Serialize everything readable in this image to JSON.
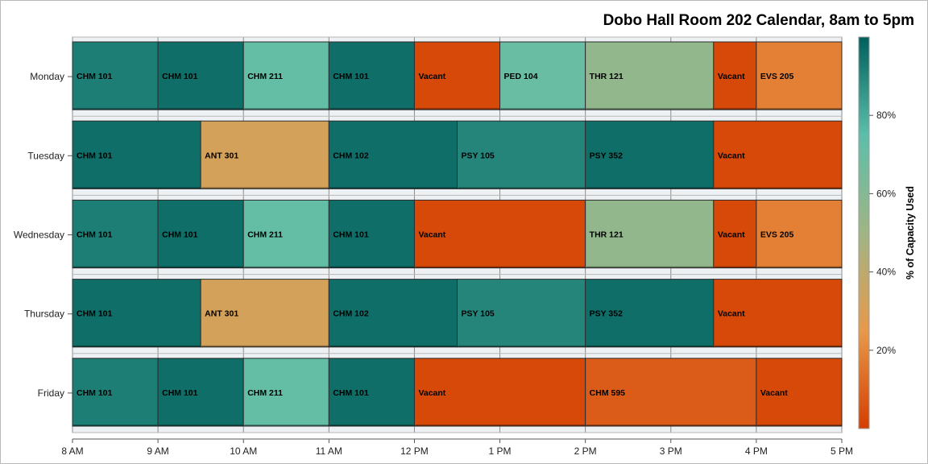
{
  "chart_data": {
    "type": "bar",
    "title": "Dobo Hall Room 202 Calendar, 8am to 5pm",
    "x_axis": {
      "ticks": [
        "8 AM",
        "9 AM",
        "10 AM",
        "11 AM",
        "12 PM",
        "1 PM",
        "2 PM",
        "3 PM",
        "4 PM",
        "5 PM"
      ],
      "range": [
        8,
        17
      ]
    },
    "days": [
      "Monday",
      "Tuesday",
      "Wednesday",
      "Thursday",
      "Friday"
    ],
    "colorbar": {
      "label": "% of Capacity Used",
      "ticks": [
        "20%",
        "40%",
        "60%",
        "80%"
      ],
      "tick_values": [
        20,
        40,
        60,
        80
      ],
      "range": [
        0,
        100
      ],
      "stops": [
        "#d53e00",
        "#e8994a",
        "#9fb584",
        "#5cbfaa",
        "#005f5c"
      ]
    },
    "schedule": [
      {
        "day": "Monday",
        "blocks": [
          {
            "label": "CHM 101",
            "start": 8,
            "end": 9,
            "capacity": 92
          },
          {
            "label": "CHM 101",
            "start": 9,
            "end": 10,
            "capacity": 96
          },
          {
            "label": "CHM 211",
            "start": 10,
            "end": 11,
            "capacity": 72
          },
          {
            "label": "CHM 101",
            "start": 11,
            "end": 12,
            "capacity": 96
          },
          {
            "label": "Vacant",
            "start": 12,
            "end": 13,
            "capacity": 3
          },
          {
            "label": "PED 104",
            "start": 13,
            "end": 14,
            "capacity": 70
          },
          {
            "label": "THR 121",
            "start": 14,
            "end": 15.5,
            "capacity": 55
          },
          {
            "label": "Vacant",
            "start": 15.5,
            "end": 16,
            "capacity": 3
          },
          {
            "label": "EVS 205",
            "start": 16,
            "end": 17,
            "capacity": 18
          }
        ]
      },
      {
        "day": "Tuesday",
        "blocks": [
          {
            "label": "CHM 101",
            "start": 8,
            "end": 9.5,
            "capacity": 96
          },
          {
            "label": "ANT 301",
            "start": 9.5,
            "end": 11,
            "capacity": 32
          },
          {
            "label": "CHM 102",
            "start": 11,
            "end": 12.5,
            "capacity": 96
          },
          {
            "label": "PSY 105",
            "start": 12.5,
            "end": 14,
            "capacity": 90
          },
          {
            "label": "PSY 352",
            "start": 14,
            "end": 15.5,
            "capacity": 96
          },
          {
            "label": "Vacant",
            "start": 15.5,
            "end": 17,
            "capacity": 3
          }
        ]
      },
      {
        "day": "Wednesday",
        "blocks": [
          {
            "label": "CHM 101",
            "start": 8,
            "end": 9,
            "capacity": 92
          },
          {
            "label": "CHM 101",
            "start": 9,
            "end": 10,
            "capacity": 96
          },
          {
            "label": "CHM 211",
            "start": 10,
            "end": 11,
            "capacity": 72
          },
          {
            "label": "CHM 101",
            "start": 11,
            "end": 12,
            "capacity": 96
          },
          {
            "label": "Vacant",
            "start": 12,
            "end": 14,
            "capacity": 3
          },
          {
            "label": "THR 121",
            "start": 14,
            "end": 15.5,
            "capacity": 55
          },
          {
            "label": "Vacant",
            "start": 15.5,
            "end": 16,
            "capacity": 3
          },
          {
            "label": "EVS 205",
            "start": 16,
            "end": 17,
            "capacity": 18
          }
        ]
      },
      {
        "day": "Thursday",
        "blocks": [
          {
            "label": "CHM 101",
            "start": 8,
            "end": 9.5,
            "capacity": 96
          },
          {
            "label": "ANT 301",
            "start": 9.5,
            "end": 11,
            "capacity": 32
          },
          {
            "label": "CHM 102",
            "start": 11,
            "end": 12.5,
            "capacity": 96
          },
          {
            "label": "PSY 105",
            "start": 12.5,
            "end": 14,
            "capacity": 90
          },
          {
            "label": "PSY 352",
            "start": 14,
            "end": 15.5,
            "capacity": 96
          },
          {
            "label": "Vacant",
            "start": 15.5,
            "end": 17,
            "capacity": 3
          }
        ]
      },
      {
        "day": "Friday",
        "blocks": [
          {
            "label": "CHM 101",
            "start": 8,
            "end": 9,
            "capacity": 92
          },
          {
            "label": "CHM 101",
            "start": 9,
            "end": 10,
            "capacity": 96
          },
          {
            "label": "CHM 211",
            "start": 10,
            "end": 11,
            "capacity": 72
          },
          {
            "label": "CHM 101",
            "start": 11,
            "end": 12,
            "capacity": 96
          },
          {
            "label": "Vacant",
            "start": 12,
            "end": 14,
            "capacity": 3
          },
          {
            "label": "CHM 595",
            "start": 14,
            "end": 16,
            "capacity": 8
          },
          {
            "label": "Vacant",
            "start": 16,
            "end": 17,
            "capacity": 3
          }
        ]
      }
    ],
    "grid": true,
    "legend_placement": "right"
  }
}
